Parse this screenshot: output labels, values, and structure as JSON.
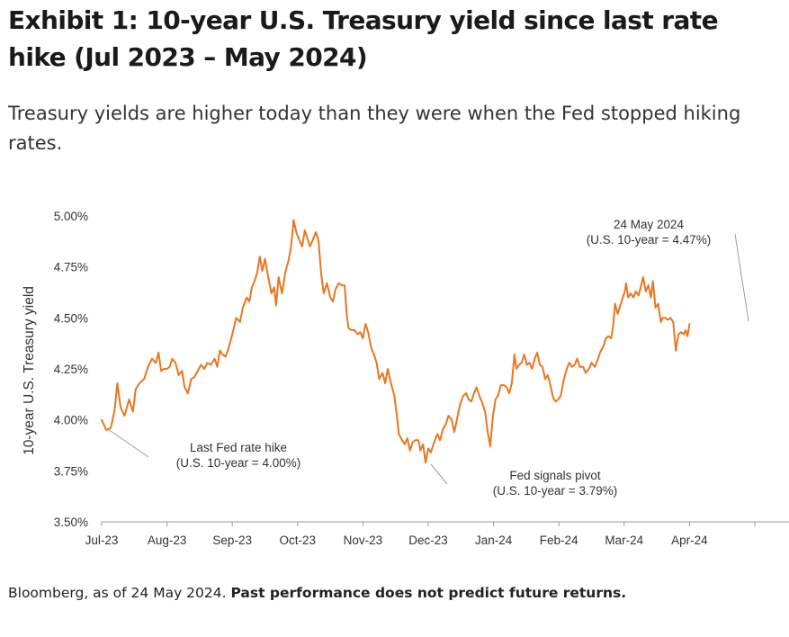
{
  "title": "Exhibit 1: 10-year U.S. Treasury yield since last rate hike (Jul 2023 – May 2024)",
  "subtitle": "Treasury yields are higher today than they were when the Fed stopped hiking rates.",
  "footer": {
    "source": "Bloomberg, as of 24 May 2024.",
    "disclaimer": "Past performance does not predict future returns."
  },
  "colors": {
    "line": "#e87722",
    "axis": "#999999",
    "leader": "#9e9e9e"
  },
  "chart_data": {
    "type": "line",
    "ylabel": "10-year U.S. Treasury yield",
    "ylim": [
      3.5,
      5.0
    ],
    "y_ticks": [
      "3.50%",
      "3.75%",
      "4.00%",
      "4.25%",
      "4.50%",
      "4.75%",
      "5.00%"
    ],
    "x_ticks": [
      "Jul-23",
      "Aug-23",
      "Sep-23",
      "Oct-23",
      "Nov-23",
      "Dec-23",
      "Jan-24",
      "Feb-24",
      "Mar-24",
      "Apr-24"
    ],
    "x_range": [
      0,
      10.75
    ],
    "grid": false,
    "series": [
      {
        "values": [
          [
            0.0,
            4.0
          ],
          [
            0.07,
            3.95
          ],
          [
            0.14,
            3.96
          ],
          [
            0.2,
            4.05
          ],
          [
            0.24,
            4.18
          ],
          [
            0.29,
            4.06
          ],
          [
            0.35,
            4.02
          ],
          [
            0.42,
            4.1
          ],
          [
            0.48,
            4.04
          ],
          [
            0.52,
            4.15
          ],
          [
            0.58,
            4.18
          ],
          [
            0.65,
            4.2
          ],
          [
            0.71,
            4.26
          ],
          [
            0.77,
            4.3
          ],
          [
            0.83,
            4.28
          ],
          [
            0.87,
            4.33
          ],
          [
            0.91,
            4.24
          ],
          [
            0.95,
            4.25
          ],
          [
            1.0,
            4.25
          ],
          [
            1.04,
            4.26
          ],
          [
            1.08,
            4.3
          ],
          [
            1.13,
            4.28
          ],
          [
            1.18,
            4.22
          ],
          [
            1.23,
            4.24
          ],
          [
            1.27,
            4.16
          ],
          [
            1.32,
            4.13
          ],
          [
            1.37,
            4.2
          ],
          [
            1.42,
            4.21
          ],
          [
            1.47,
            4.24
          ],
          [
            1.52,
            4.27
          ],
          [
            1.57,
            4.25
          ],
          [
            1.62,
            4.28
          ],
          [
            1.67,
            4.27
          ],
          [
            1.73,
            4.3
          ],
          [
            1.77,
            4.26
          ],
          [
            1.81,
            4.34
          ],
          [
            1.85,
            4.32
          ],
          [
            1.9,
            4.31
          ],
          [
            1.95,
            4.36
          ],
          [
            2.0,
            4.42
          ],
          [
            2.06,
            4.5
          ],
          [
            2.12,
            4.48
          ],
          [
            2.16,
            4.55
          ],
          [
            2.22,
            4.6
          ],
          [
            2.26,
            4.58
          ],
          [
            2.3,
            4.65
          ],
          [
            2.34,
            4.68
          ],
          [
            2.38,
            4.72
          ],
          [
            2.42,
            4.8
          ],
          [
            2.46,
            4.73
          ],
          [
            2.5,
            4.79
          ],
          [
            2.55,
            4.7
          ],
          [
            2.6,
            4.62
          ],
          [
            2.64,
            4.65
          ],
          [
            2.67,
            4.56
          ],
          [
            2.71,
            4.7
          ],
          [
            2.76,
            4.62
          ],
          [
            2.81,
            4.72
          ],
          [
            2.86,
            4.78
          ],
          [
            2.9,
            4.85
          ],
          [
            2.94,
            4.98
          ],
          [
            2.98,
            4.92
          ],
          [
            3.03,
            4.88
          ],
          [
            3.07,
            4.85
          ],
          [
            3.11,
            4.93
          ],
          [
            3.15,
            4.89
          ],
          [
            3.19,
            4.85
          ],
          [
            3.23,
            4.88
          ],
          [
            3.28,
            4.92
          ],
          [
            3.32,
            4.88
          ],
          [
            3.36,
            4.72
          ],
          [
            3.4,
            4.62
          ],
          [
            3.45,
            4.67
          ],
          [
            3.5,
            4.6
          ],
          [
            3.54,
            4.58
          ],
          [
            3.58,
            4.64
          ],
          [
            3.63,
            4.67
          ],
          [
            3.68,
            4.66
          ],
          [
            3.72,
            4.66
          ],
          [
            3.75,
            4.52
          ],
          [
            3.78,
            4.45
          ],
          [
            3.82,
            4.44
          ],
          [
            3.87,
            4.44
          ],
          [
            3.92,
            4.42
          ],
          [
            3.96,
            4.43
          ],
          [
            4.0,
            4.4
          ],
          [
            4.04,
            4.47
          ],
          [
            4.08,
            4.43
          ],
          [
            4.13,
            4.35
          ],
          [
            4.17,
            4.32
          ],
          [
            4.21,
            4.28
          ],
          [
            4.25,
            4.2
          ],
          [
            4.3,
            4.23
          ],
          [
            4.34,
            4.18
          ],
          [
            4.38,
            4.25
          ],
          [
            4.43,
            4.18
          ],
          [
            4.48,
            4.12
          ],
          [
            4.52,
            4.02
          ],
          [
            4.55,
            3.93
          ],
          [
            4.6,
            3.9
          ],
          [
            4.64,
            3.88
          ],
          [
            4.68,
            3.91
          ],
          [
            4.72,
            3.85
          ],
          [
            4.76,
            3.89
          ],
          [
            4.8,
            3.9
          ],
          [
            4.85,
            3.9
          ],
          [
            4.88,
            3.85
          ],
          [
            4.92,
            3.88
          ],
          [
            4.96,
            3.79
          ],
          [
            5.0,
            3.86
          ],
          [
            5.04,
            3.84
          ],
          [
            5.09,
            3.89
          ],
          [
            5.14,
            3.93
          ],
          [
            5.18,
            3.9
          ],
          [
            5.22,
            3.95
          ],
          [
            5.27,
            3.98
          ],
          [
            5.31,
            4.02
          ],
          [
            5.36,
            4.0
          ],
          [
            5.4,
            3.94
          ],
          [
            5.45,
            4.02
          ],
          [
            5.49,
            4.08
          ],
          [
            5.54,
            4.12
          ],
          [
            5.58,
            4.13
          ],
          [
            5.62,
            4.1
          ],
          [
            5.66,
            4.09
          ],
          [
            5.7,
            4.13
          ],
          [
            5.74,
            4.16
          ],
          [
            5.78,
            4.12
          ],
          [
            5.82,
            4.09
          ],
          [
            5.87,
            4.04
          ],
          [
            5.91,
            3.94
          ],
          [
            5.95,
            3.87
          ],
          [
            5.99,
            4.02
          ],
          [
            6.03,
            4.1
          ],
          [
            6.07,
            4.12
          ],
          [
            6.11,
            4.17
          ],
          [
            6.16,
            4.17
          ],
          [
            6.2,
            4.16
          ],
          [
            6.24,
            4.13
          ],
          [
            6.28,
            4.18
          ],
          [
            6.32,
            4.32
          ],
          [
            6.35,
            4.25
          ],
          [
            6.39,
            4.27
          ],
          [
            6.43,
            4.28
          ],
          [
            6.47,
            4.32
          ],
          [
            6.51,
            4.27
          ],
          [
            6.55,
            4.28
          ],
          [
            6.59,
            4.25
          ],
          [
            6.63,
            4.3
          ],
          [
            6.67,
            4.33
          ],
          [
            6.71,
            4.27
          ],
          [
            6.75,
            4.26
          ],
          [
            6.79,
            4.2
          ],
          [
            6.83,
            4.22
          ],
          [
            6.87,
            4.17
          ],
          [
            6.91,
            4.11
          ],
          [
            6.95,
            4.09
          ],
          [
            6.99,
            4.1
          ],
          [
            7.03,
            4.12
          ],
          [
            7.07,
            4.19
          ],
          [
            7.12,
            4.25
          ],
          [
            7.16,
            4.28
          ],
          [
            7.2,
            4.26
          ],
          [
            7.24,
            4.27
          ],
          [
            7.28,
            4.3
          ],
          [
            7.32,
            4.26
          ],
          [
            7.37,
            4.26
          ],
          [
            7.41,
            4.23
          ],
          [
            7.46,
            4.25
          ],
          [
            7.5,
            4.28
          ],
          [
            7.55,
            4.26
          ],
          [
            7.59,
            4.29
          ],
          [
            7.63,
            4.33
          ],
          [
            7.68,
            4.36
          ],
          [
            7.72,
            4.4
          ],
          [
            7.76,
            4.41
          ],
          [
            7.8,
            4.4
          ],
          [
            7.83,
            4.46
          ],
          [
            7.86,
            4.57
          ],
          [
            7.9,
            4.52
          ],
          [
            7.94,
            4.56
          ],
          [
            7.98,
            4.6
          ],
          [
            8.01,
            4.63
          ],
          [
            8.03,
            4.67
          ],
          [
            8.06,
            4.6
          ],
          [
            8.1,
            4.62
          ],
          [
            8.14,
            4.6
          ],
          [
            8.18,
            4.63
          ],
          [
            8.22,
            4.61
          ],
          [
            8.26,
            4.66
          ],
          [
            8.29,
            4.7
          ],
          [
            8.33,
            4.63
          ],
          [
            8.37,
            4.66
          ],
          [
            8.41,
            4.6
          ],
          [
            8.44,
            4.68
          ],
          [
            8.48,
            4.55
          ],
          [
            8.52,
            4.57
          ],
          [
            8.56,
            4.48
          ],
          [
            8.59,
            4.5
          ],
          [
            8.63,
            4.5
          ],
          [
            8.67,
            4.49
          ],
          [
            8.71,
            4.5
          ],
          [
            8.75,
            4.48
          ],
          [
            8.79,
            4.34
          ],
          [
            8.83,
            4.42
          ],
          [
            8.87,
            4.43
          ],
          [
            8.91,
            4.42
          ],
          [
            8.94,
            4.44
          ],
          [
            8.97,
            4.41
          ],
          [
            9.0,
            4.47
          ]
        ]
      }
    ],
    "annotations": [
      {
        "id": "last-hike",
        "lines": [
          "Last Fed rate hike",
          "(U.S. 10-year = 4.00%)"
        ],
        "x": 0.0,
        "y": 4.0
      },
      {
        "id": "pivot",
        "lines": [
          "Fed signals pivot",
          "(U.S. 10-year = 3.79%)"
        ],
        "x": 4.96,
        "y": 3.79
      },
      {
        "id": "latest",
        "lines": [
          "24 May 2024",
          "(U.S. 10-year = 4.47%)"
        ],
        "x": 9.0,
        "y": 4.47
      }
    ]
  }
}
